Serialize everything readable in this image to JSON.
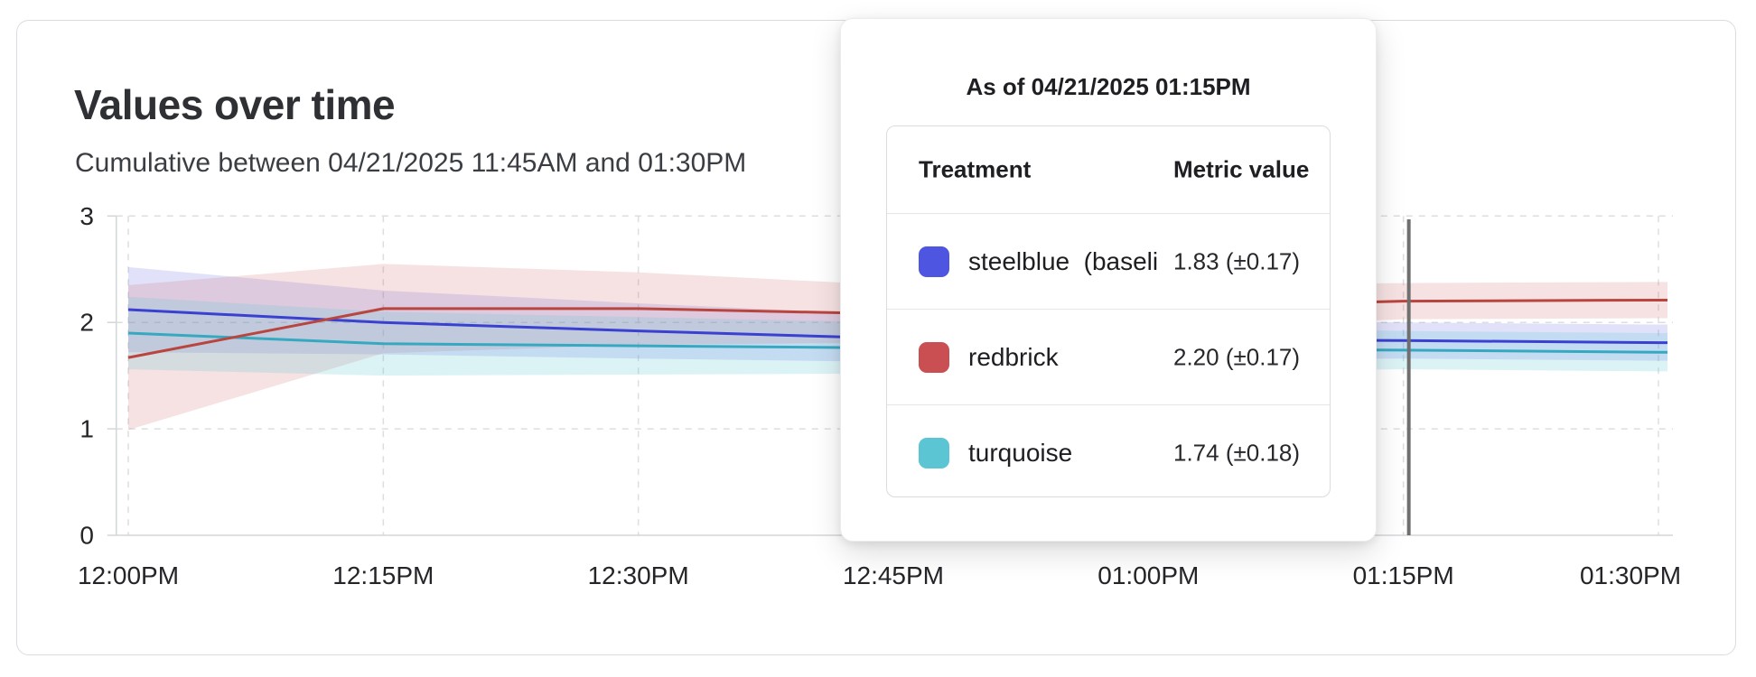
{
  "card": {
    "title": "Values over time",
    "subtitle": "Cumulative between 04/21/2025 11:45AM and 01:30PM"
  },
  "chart_data": {
    "type": "line",
    "title": "Values over time",
    "categories": [
      "12:00PM",
      "12:15PM",
      "12:30PM",
      "12:45PM",
      "01:00PM",
      "01:15PM",
      "01:30PM"
    ],
    "ylim": [
      0,
      3
    ],
    "yticks": [
      0,
      1,
      2,
      3
    ],
    "grid": "dashed",
    "legend_position": "none",
    "cursor_at": "01:15PM",
    "cursor_color": "#6f6f6f",
    "series": [
      {
        "name": "steelblue  (baseline)",
        "color": "#3a41d0",
        "band_color": "rgba(88,96,226,0.18)",
        "values": [
          2.12,
          2.0,
          1.92,
          1.85,
          1.84,
          1.83,
          1.81
        ],
        "band_margin": [
          0.4,
          0.3,
          0.26,
          0.22,
          0.19,
          0.17,
          0.17
        ]
      },
      {
        "name": "redbrick",
        "color": "#b9453f",
        "band_color": "rgba(205,92,92,0.18)",
        "values": [
          1.67,
          2.13,
          2.13,
          2.08,
          2.14,
          2.2,
          2.21
        ],
        "band_margin": [
          0.68,
          0.42,
          0.34,
          0.27,
          0.21,
          0.17,
          0.17
        ]
      },
      {
        "name": "turquoise",
        "color": "#36a9c1",
        "band_color": "rgba(95,201,215,0.22)",
        "values": [
          1.9,
          1.8,
          1.78,
          1.76,
          1.75,
          1.74,
          1.72
        ],
        "band_margin": [
          0.34,
          0.3,
          0.27,
          0.24,
          0.21,
          0.18,
          0.18
        ]
      }
    ]
  },
  "tooltip": {
    "title": "As of 04/21/2025 01:15PM",
    "table": {
      "headers": {
        "treatment": "Treatment",
        "metric": "Metric value"
      },
      "rows": [
        {
          "label": "steelblue  (baseli",
          "swatch": "#4e55e1",
          "value": "1.83 (±0.17)"
        },
        {
          "label": "redbrick",
          "swatch": "#c94f52",
          "value": "2.20 (±0.17)"
        },
        {
          "label": "turquoise",
          "swatch": "#5cc5d3",
          "value": "1.74 (±0.18)"
        }
      ]
    }
  }
}
